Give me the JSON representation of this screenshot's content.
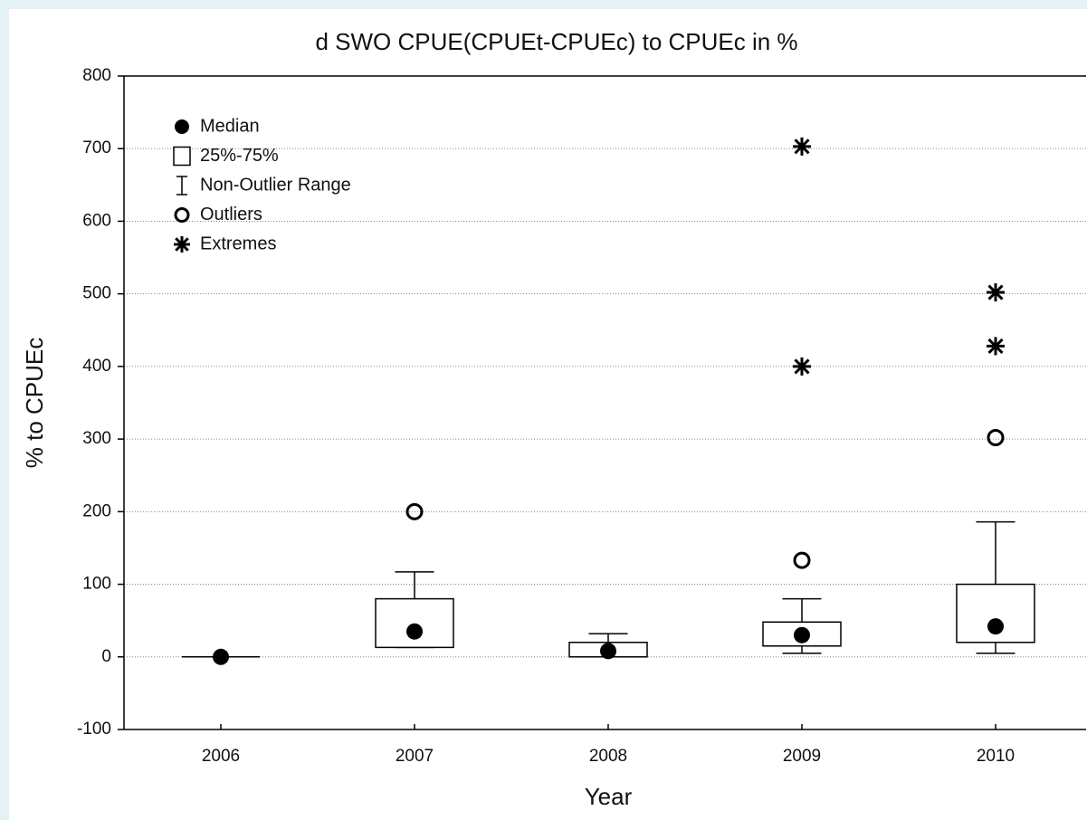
{
  "chart_data": {
    "type": "box",
    "title": "d SWO CPUE(CPUEt-CPUEc) to CPUEc in %",
    "xlabel": "Year",
    "ylabel": "% to CPUEc",
    "categories": [
      "2006",
      "2007",
      "2008",
      "2009",
      "2010"
    ],
    "boxes": [
      {
        "min": 0,
        "q1": 0,
        "median": 0,
        "q3": 0,
        "max": 0,
        "outliers": [],
        "extremes": []
      },
      {
        "min": 13,
        "q1": 13,
        "median": 35,
        "q3": 80,
        "max": 117,
        "outliers": [
          200
        ],
        "extremes": []
      },
      {
        "min": 0,
        "q1": 0,
        "median": 8,
        "q3": 20,
        "max": 32,
        "outliers": [],
        "extremes": []
      },
      {
        "min": 5,
        "q1": 15,
        "median": 30,
        "q3": 48,
        "max": 80,
        "outliers": [
          133
        ],
        "extremes": [
          703,
          400
        ]
      },
      {
        "min": 5,
        "q1": 20,
        "median": 42,
        "q3": 100,
        "max": 186,
        "outliers": [
          302
        ],
        "extremes": [
          502,
          428
        ]
      }
    ],
    "legend": [
      "Median",
      "25%-75%",
      "Non-Outlier Range",
      "Outliers",
      "Extremes"
    ],
    "ylim": [
      -100,
      800
    ],
    "yticks": [
      -100,
      0,
      100,
      200,
      300,
      400,
      500,
      600,
      700,
      800
    ],
    "grid": true,
    "color": "#000000"
  }
}
